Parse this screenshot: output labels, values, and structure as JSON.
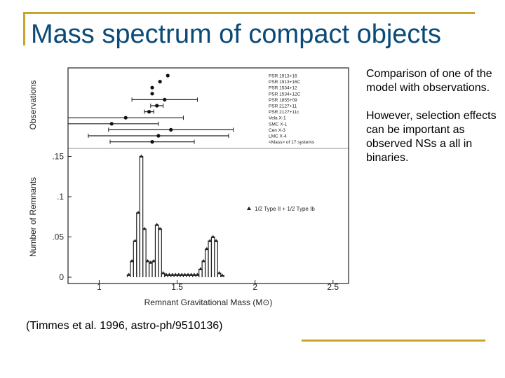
{
  "title": "Mass spectrum of compact objects",
  "side_text": [
    "Comparison of one of the model with observations.",
    "However, selection effects can be important as observed NSs a all in binaries."
  ],
  "caption": "(Timmes et al. 1996, astro-ph/9510136)",
  "chart_data": {
    "type": "histogram",
    "xlabel": "Remnant Gravitational Mass (M⊙)",
    "ylabel": "Number of Remnants",
    "obs_label": "Observations",
    "legend": "1/2 Type II + 1/2 Type Ib",
    "xlim": [
      0.8,
      2.6
    ],
    "xticks": [
      1,
      1.5,
      2,
      2.5
    ],
    "ylim": [
      0,
      0.16
    ],
    "yticks": [
      0,
      {
        "value": 0.05,
        "label": ".05"
      },
      {
        "value": 0.1,
        "label": ".1"
      },
      {
        "value": 0.15,
        "label": ".15"
      }
    ],
    "bins": [
      1.18,
      1.2,
      1.22,
      1.24,
      1.26,
      1.28,
      1.3,
      1.32,
      1.34,
      1.36,
      1.38,
      1.4,
      1.42,
      1.44,
      1.46,
      1.48,
      1.5,
      1.52,
      1.54,
      1.56,
      1.58,
      1.6,
      1.62,
      1.64,
      1.66,
      1.68,
      1.7,
      1.72,
      1.74,
      1.76,
      1.78,
      1.8
    ],
    "counts": [
      0.003,
      0.02,
      0.045,
      0.08,
      0.15,
      0.06,
      0.02,
      0.018,
      0.02,
      0.065,
      0.06,
      0.005,
      0.003,
      0.003,
      0.003,
      0.003,
      0.003,
      0.003,
      0.003,
      0.003,
      0.003,
      0.003,
      0.003,
      0.01,
      0.02,
      0.035,
      0.045,
      0.05,
      0.045,
      0.005,
      0.002
    ],
    "observations": {
      "names": [
        "PSR 1913+16",
        "PSR 1913+16C",
        "PSR 1534+12",
        "PSR 1534+12C",
        "PSR 1855+09",
        "PSR 2127+11",
        "PSR 2127+11c",
        "Vela X-1",
        "SMC X-1",
        "Cen X-3",
        "LMC X-4",
        "<Mass> of 17 systems"
      ],
      "mass": [
        1.44,
        1.39,
        1.34,
        1.34,
        1.42,
        1.37,
        1.32,
        1.17,
        1.08,
        1.46,
        1.38,
        1.34
      ],
      "error": [
        0,
        0,
        0,
        0,
        0.21,
        0.04,
        0.03,
        0.37,
        0.3,
        0.4,
        0.45,
        0.27
      ]
    }
  }
}
